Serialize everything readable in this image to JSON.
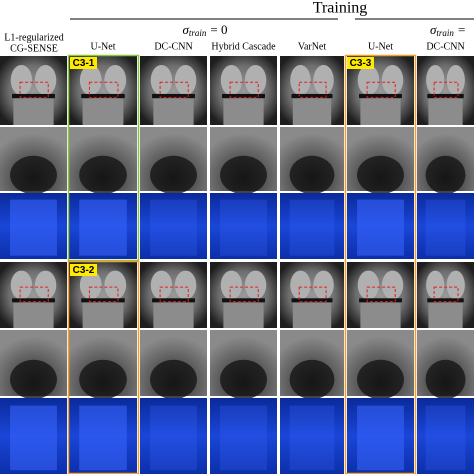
{
  "header": {
    "title": "Training",
    "groups": [
      {
        "symbol": "σ",
        "subscript": "train",
        "rest": "= 0"
      },
      {
        "symbol": "σ",
        "subscript": "train",
        "rest": "="
      }
    ]
  },
  "row_header": {
    "lines": [
      "L1-regularized",
      "CG-SENSE"
    ]
  },
  "columns": [
    "U-Net",
    "DC-CNN",
    "Hybrid Cascade",
    "VarNet",
    "U-Net",
    "DC-CNN"
  ],
  "tags": [
    "C3-1",
    "C3-2",
    "C3-3"
  ]
}
